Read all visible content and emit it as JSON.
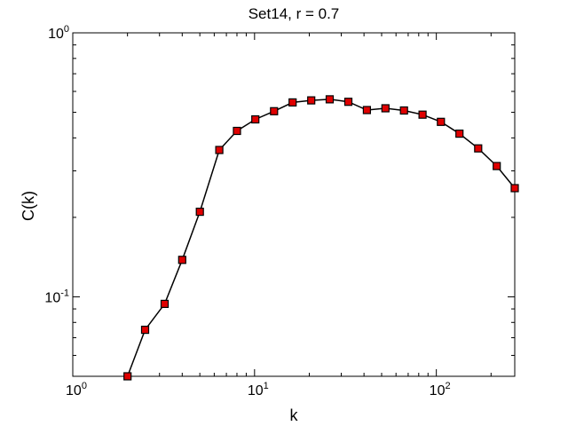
{
  "chart_data": {
    "type": "line",
    "title": "Set14, r = 0.7",
    "xlabel": "k",
    "ylabel": "C(k)",
    "xscale": "log",
    "yscale": "log",
    "xlim": [
      1,
      270
    ],
    "ylim": [
      0.05,
      1
    ],
    "grid": false,
    "marker": "square",
    "colors": {
      "line": "#000000",
      "marker_fill": "#e00000",
      "marker_edge": "#000000"
    },
    "x_ticks": [
      {
        "value": 1,
        "base": "10",
        "exp": "0"
      },
      {
        "value": 10,
        "base": "10",
        "exp": "1"
      },
      {
        "value": 100,
        "base": "10",
        "exp": "2"
      }
    ],
    "y_ticks": [
      {
        "value": 0.1,
        "base": "10",
        "exp": "-1"
      },
      {
        "value": 1,
        "base": "10",
        "exp": "0"
      }
    ],
    "series": [
      {
        "x": [
          2,
          2.5,
          3.2,
          4,
          5,
          6.4,
          8,
          10.1,
          12.8,
          16.2,
          20.5,
          25.9,
          32.8,
          41.5,
          52.5,
          66.4,
          84,
          106,
          134,
          170,
          215,
          270
        ],
        "y": [
          0.05,
          0.075,
          0.094,
          0.138,
          0.21,
          0.36,
          0.425,
          0.47,
          0.505,
          0.545,
          0.555,
          0.56,
          0.548,
          0.51,
          0.518,
          0.508,
          0.49,
          0.46,
          0.415,
          0.365,
          0.313,
          0.258
        ]
      }
    ]
  }
}
